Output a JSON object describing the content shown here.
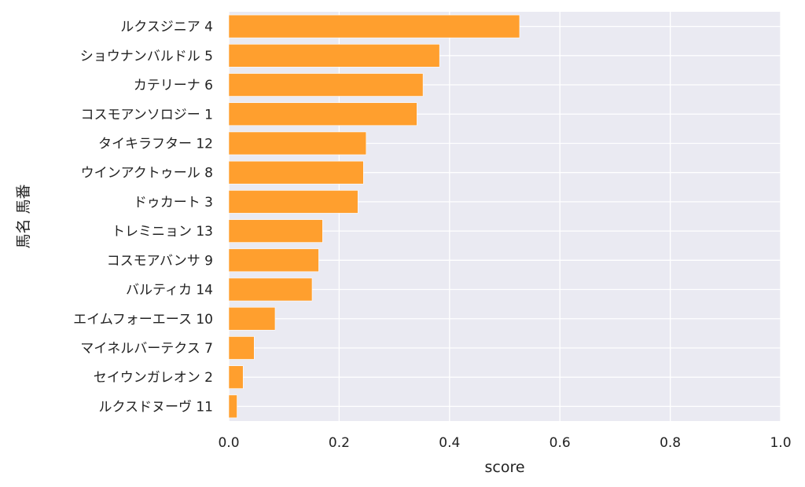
{
  "chart_data": {
    "type": "bar",
    "orientation": "horizontal",
    "categories": [
      "ルクスジニア 4",
      "ショウナンバルドル 5",
      "カテリーナ 6",
      "コスモアンソロジー 1",
      "タイキラフター 12",
      "ウインアクトゥール 8",
      "ドゥカート 3",
      "トレミニョン 13",
      "コスモアバンサ 9",
      "バルティカ 14",
      "エイムフォーエース 10",
      "マイネルバーテクス 7",
      "セイウンガレオン 2",
      "ルクスドヌーヴ 11"
    ],
    "values": [
      0.527,
      0.382,
      0.352,
      0.341,
      0.249,
      0.244,
      0.234,
      0.17,
      0.163,
      0.151,
      0.084,
      0.046,
      0.026,
      0.015
    ],
    "xlabel": "score",
    "ylabel": "馬名 馬番",
    "xlim": [
      0,
      1.0
    ],
    "xticks": [
      "0.0",
      "0.2",
      "0.4",
      "0.6",
      "0.8",
      "1.0"
    ],
    "grid": true,
    "colors": {
      "bar": "#ff9f2e",
      "plot_background": "#eaeaf2",
      "grid": "#ffffff"
    }
  }
}
